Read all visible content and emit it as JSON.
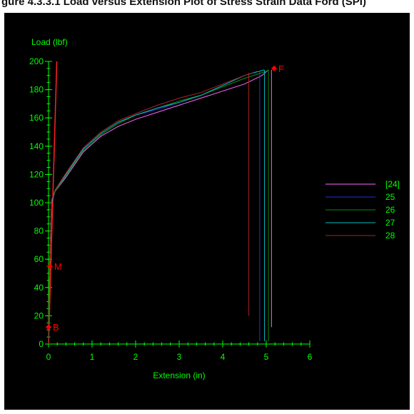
{
  "figure_title": "gure 4.3.3.1 Load versus Extension Plot of Stress Strain Data Ford (SPI)",
  "colors": {
    "background": "#000000",
    "axis": "#00ff00",
    "marker": "#ff0000",
    "marker_label": "#ff0000"
  },
  "chart_data": {
    "type": "line",
    "title": "",
    "xlabel": "Extension (in)",
    "ylabel": "Load (lbf)",
    "xlim": [
      0,
      6
    ],
    "ylim": [
      0,
      200
    ],
    "xticks": [
      0,
      1,
      2,
      3,
      4,
      5,
      6
    ],
    "yticks": [
      0,
      20,
      40,
      60,
      80,
      100,
      120,
      140,
      160,
      180,
      200
    ],
    "grid": false,
    "legend_position": "right",
    "series": [
      {
        "name": "[24]",
        "color": "#ff66ff",
        "points": [
          [
            0,
            0
          ],
          [
            0.03,
            60
          ],
          [
            0.07,
            100
          ],
          [
            0.15,
            108
          ],
          [
            0.4,
            118
          ],
          [
            0.8,
            136
          ],
          [
            1.2,
            147
          ],
          [
            1.6,
            154
          ],
          [
            2.0,
            159
          ],
          [
            2.5,
            164
          ],
          [
            3.0,
            169
          ],
          [
            3.5,
            174
          ],
          [
            4.0,
            179
          ],
          [
            4.5,
            184
          ],
          [
            4.9,
            190
          ],
          [
            5.05,
            194
          ]
        ],
        "fracture_x": 5.12,
        "fracture_to_y": 12
      },
      {
        "name": "25",
        "color": "#2233dd",
        "points": [
          [
            0,
            0
          ],
          [
            0.03,
            60
          ],
          [
            0.07,
            101
          ],
          [
            0.15,
            109
          ],
          [
            0.4,
            120
          ],
          [
            0.8,
            138
          ],
          [
            1.2,
            149
          ],
          [
            1.6,
            157
          ],
          [
            2.0,
            162
          ],
          [
            2.5,
            166
          ],
          [
            3.0,
            171
          ],
          [
            3.5,
            176
          ],
          [
            4.0,
            183
          ],
          [
            4.5,
            190
          ],
          [
            4.8,
            193
          ]
        ],
        "fracture_x": 4.85,
        "fracture_to_y": 2
      },
      {
        "name": "26",
        "color": "#118811",
        "points": [
          [
            0,
            0
          ],
          [
            0.03,
            60
          ],
          [
            0.07,
            101
          ],
          [
            0.15,
            108
          ],
          [
            0.4,
            119
          ],
          [
            0.8,
            137
          ],
          [
            1.2,
            148
          ],
          [
            1.6,
            156
          ],
          [
            2.0,
            162
          ],
          [
            2.5,
            167
          ],
          [
            3.0,
            172
          ],
          [
            3.5,
            176
          ],
          [
            4.0,
            182
          ],
          [
            4.5,
            188
          ],
          [
            5.0,
            193
          ],
          [
            5.05,
            194
          ]
        ],
        "fracture_x": 5.05,
        "fracture_to_y": 2
      },
      {
        "name": "27",
        "color": "#00bbbb",
        "points": [
          [
            0,
            0
          ],
          [
            0.03,
            60
          ],
          [
            0.07,
            101
          ],
          [
            0.15,
            109
          ],
          [
            0.4,
            120
          ],
          [
            0.8,
            138
          ],
          [
            1.2,
            149
          ],
          [
            1.6,
            157
          ],
          [
            2.0,
            162
          ],
          [
            2.5,
            167
          ],
          [
            3.0,
            171
          ],
          [
            3.5,
            176
          ],
          [
            4.0,
            183
          ],
          [
            4.5,
            190
          ],
          [
            4.95,
            194
          ]
        ],
        "fracture_x": 4.96,
        "fracture_to_y": 2
      },
      {
        "name": "28",
        "color": "#aa2222",
        "points": [
          [
            0,
            0
          ],
          [
            0.03,
            60
          ],
          [
            0.07,
            102
          ],
          [
            0.15,
            109
          ],
          [
            0.4,
            121
          ],
          [
            0.8,
            139
          ],
          [
            1.2,
            150
          ],
          [
            1.6,
            158
          ],
          [
            2.0,
            163
          ],
          [
            2.5,
            169
          ],
          [
            3.0,
            174
          ],
          [
            3.5,
            178
          ],
          [
            4.0,
            184
          ],
          [
            4.5,
            190
          ],
          [
            4.7,
            192
          ]
        ],
        "fracture_x": 4.6,
        "fracture_to_y": 20
      }
    ],
    "reference_line": {
      "color": "#ff2222",
      "points": [
        [
          0,
          0
        ],
        [
          0.19,
          200
        ]
      ]
    },
    "markers": [
      {
        "label": "B",
        "x": 0.0,
        "y": 12
      },
      {
        "label": "M",
        "x": 0.03,
        "y": 55
      },
      {
        "label": "F",
        "x": 5.18,
        "y": 195
      }
    ]
  }
}
